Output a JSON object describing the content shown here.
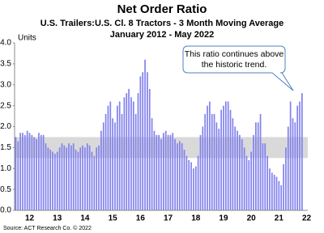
{
  "chart_data": {
    "type": "bar",
    "title": "Net Order Ratio",
    "subtitle": [
      "U.S. Trailers:U.S. Cl. 8 Tractors - 3 Month Moving Average",
      "January 2012 - May 2022"
    ],
    "y_label": "Units",
    "annotation": [
      "This ratio continues above",
      "the historic trend."
    ],
    "source": "Source: ACT Research Co. © 2022",
    "categories": [
      null,
      null,
      null,
      null,
      null,
      null,
      "12",
      null,
      null,
      null,
      null,
      null,
      null,
      null,
      null,
      null,
      null,
      null,
      "13",
      null,
      null,
      null,
      null,
      null,
      null,
      null,
      null,
      null,
      null,
      null,
      "14",
      null,
      null,
      null,
      null,
      null,
      null,
      null,
      null,
      null,
      null,
      null,
      "15",
      null,
      null,
      null,
      null,
      null,
      null,
      null,
      null,
      null,
      null,
      null,
      "16",
      null,
      null,
      null,
      null,
      null,
      null,
      null,
      null,
      null,
      null,
      null,
      "17",
      null,
      null,
      null,
      null,
      null,
      null,
      null,
      null,
      null,
      null,
      null,
      "18",
      null,
      null,
      null,
      null,
      null,
      null,
      null,
      null,
      null,
      null,
      null,
      "19",
      null,
      null,
      null,
      null,
      null,
      null,
      null,
      null,
      null,
      null,
      null,
      "20",
      null,
      null,
      null,
      null,
      null,
      null,
      null,
      null,
      null,
      null,
      null,
      "21",
      null,
      null,
      null,
      null,
      null,
      null,
      null,
      null,
      null,
      null,
      null,
      "22"
    ],
    "values": [
      1.75,
      1.65,
      1.85,
      1.85,
      1.8,
      1.9,
      1.85,
      1.8,
      1.75,
      1.7,
      1.85,
      1.8,
      1.8,
      1.6,
      1.5,
      1.45,
      1.4,
      1.35,
      1.4,
      1.5,
      1.6,
      1.55,
      1.5,
      1.6,
      1.55,
      1.6,
      1.45,
      1.4,
      1.5,
      1.55,
      1.5,
      1.6,
      1.55,
      1.4,
      1.3,
      1.5,
      1.55,
      1.9,
      2.1,
      2.3,
      2.5,
      2.6,
      2.2,
      2.1,
      2.5,
      2.6,
      2.3,
      2.7,
      2.8,
      2.9,
      2.7,
      2.6,
      2.3,
      2.8,
      3.2,
      3.3,
      3.6,
      3.3,
      2.9,
      2.2,
      1.9,
      1.8,
      1.8,
      1.7,
      1.85,
      1.9,
      1.8,
      1.8,
      1.85,
      1.7,
      1.6,
      1.65,
      1.6,
      1.45,
      1.3,
      1.2,
      1.15,
      1.0,
      1.05,
      1.3,
      1.8,
      2.0,
      2.3,
      2.5,
      2.6,
      2.3,
      2.3,
      2.1,
      1.95,
      2.4,
      2.5,
      2.6,
      2.6,
      2.4,
      2.2,
      2.0,
      1.9,
      1.8,
      1.7,
      1.5,
      1.3,
      1.2,
      1.4,
      1.8,
      2.1,
      2.1,
      2.3,
      1.6,
      1.6,
      1.3,
      1.0,
      0.9,
      0.85,
      0.8,
      0.7,
      0.6,
      1.1,
      1.5,
      2.0,
      2.6,
      2.2,
      2.1,
      2.5,
      2.6,
      2.8,
      null,
      null
    ],
    "color": "#8282ee",
    "band": [
      1.25,
      1.75
    ],
    "band_color": "#d9d9d9",
    "ylim": [
      0,
      4
    ],
    "yticks": [
      {
        "value": 0,
        "label": "0.0"
      },
      {
        "value": 0.5,
        "label": "0.5"
      },
      {
        "value": 1,
        "label": "1.0"
      },
      {
        "value": 1.5,
        "label": "1.5"
      },
      {
        "value": 2,
        "label": "2.0"
      },
      {
        "value": 2.5,
        "label": "2.5"
      },
      {
        "value": 3,
        "label": "3.0"
      },
      {
        "value": 3.5,
        "label": "3.5"
      },
      {
        "value": 4,
        "label": "4.0"
      }
    ]
  }
}
